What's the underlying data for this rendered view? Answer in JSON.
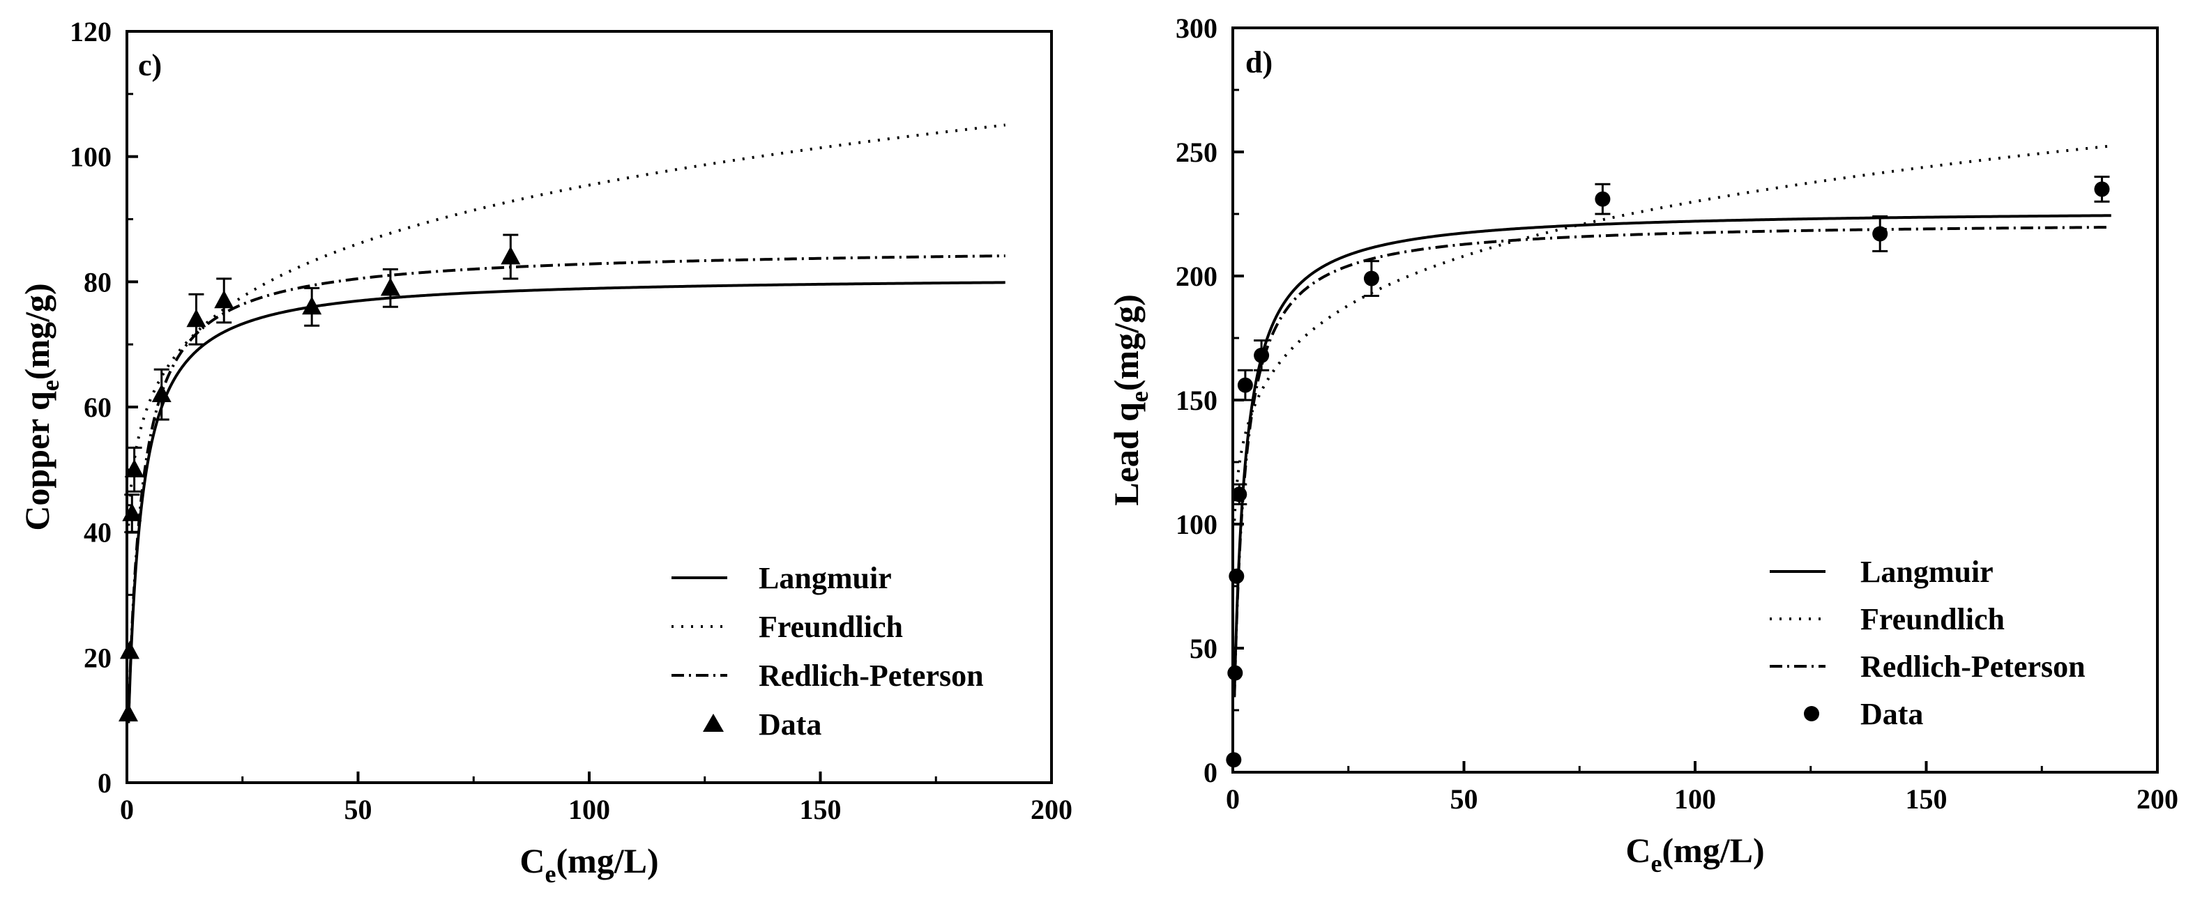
{
  "chart_data": [
    {
      "type": "scatter",
      "panel_label": "c)",
      "xlabel_main": "C",
      "xlabel_sub": "e",
      "xlabel_rest": "(mg/L)",
      "ylabel_main": "Copper q",
      "ylabel_sub": "e",
      "ylabel_rest": "(mg/g)",
      "xlim": [
        0,
        200
      ],
      "ylim": [
        0,
        120
      ],
      "xticks": [
        0,
        50,
        100,
        150,
        200
      ],
      "yticks": [
        0,
        20,
        40,
        60,
        80,
        100,
        120
      ],
      "marker": "triangle",
      "legend_position": "bottom-right",
      "data": {
        "name": "Data",
        "x": [
          0.3,
          0.6,
          1.1,
          1.6,
          7.5,
          15,
          21,
          40,
          57,
          83
        ],
        "y": [
          11,
          21,
          43,
          50,
          62,
          74,
          77,
          76,
          79,
          84
        ],
        "err": [
          0,
          0,
          3,
          3.5,
          4,
          4,
          3.5,
          3,
          3,
          3.5
        ]
      },
      "fits": [
        {
          "name": "Langmuir",
          "model": "langmuir",
          "params": {
            "qm": 81.0,
            "K": 0.38
          }
        },
        {
          "name": "Freundlich",
          "model": "freundlich",
          "params": {
            "Kf": 48.0,
            "n": 6.7
          }
        },
        {
          "name": "Redlich-Peterson",
          "model": "redlich_peterson",
          "params": {
            "A": 32.0,
            "B": 0.385,
            "g": 0.995
          }
        }
      ],
      "legend": [
        "Langmuir",
        "Freundlich",
        "Redlich-Peterson",
        "Data"
      ]
    },
    {
      "type": "scatter",
      "panel_label": "d)",
      "xlabel_main": "C",
      "xlabel_sub": "e",
      "xlabel_rest": "(mg/L)",
      "ylabel_main": "Lead q",
      "ylabel_sub": "e",
      "ylabel_rest": "(mg/g)",
      "xlim": [
        0,
        200
      ],
      "ylim": [
        0,
        300
      ],
      "xticks": [
        0,
        50,
        100,
        150,
        200
      ],
      "yticks": [
        0,
        50,
        100,
        150,
        200,
        250,
        300
      ],
      "marker": "circle",
      "legend_position": "bottom-right",
      "data": {
        "name": "Data",
        "x": [
          0.2,
          0.5,
          0.8,
          1.4,
          2.7,
          6.2,
          30,
          80,
          140,
          188
        ],
        "y": [
          5,
          40,
          79,
          112,
          156,
          168,
          199,
          231,
          217,
          235
        ],
        "err": [
          0,
          0,
          0,
          4,
          6,
          6,
          7,
          6,
          7,
          5
        ]
      },
      "fits": [
        {
          "name": "Langmuir",
          "model": "langmuir",
          "params": {
            "qm": 227.0,
            "K": 0.45
          }
        },
        {
          "name": "Freundlich",
          "model": "freundlich",
          "params": {
            "Kf": 118.0,
            "n": 6.9
          }
        },
        {
          "name": "Redlich-Peterson",
          "model": "redlich_peterson",
          "params": {
            "A": 100.0,
            "B": 0.45,
            "g": 1.0
          }
        }
      ],
      "legend": [
        "Langmuir",
        "Freundlich",
        "Redlich-Peterson",
        "Data"
      ]
    }
  ]
}
